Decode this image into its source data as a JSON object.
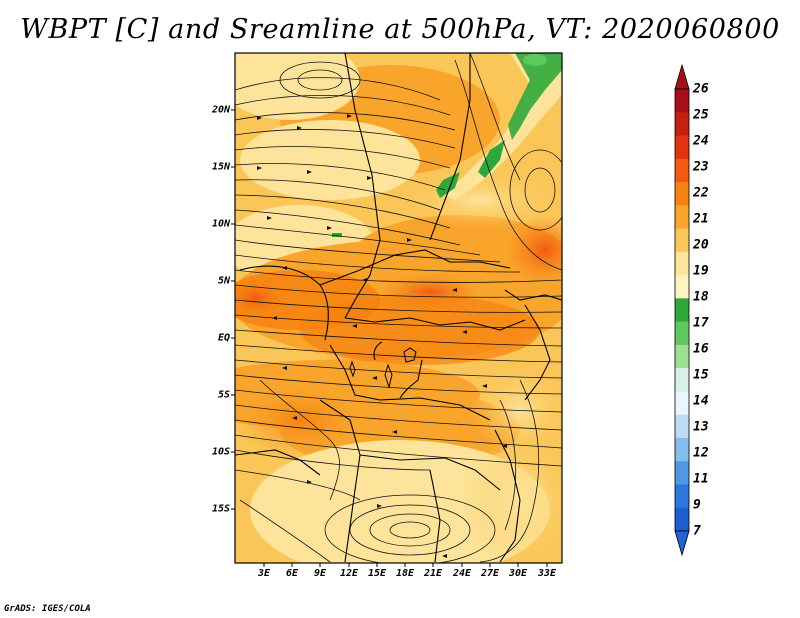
{
  "title": "WBPT [C] and Sreamline at 500hPa, VT: 2020060800",
  "footer": "GrADS: IGES/COLA",
  "map": {
    "variable": "WBPT [C]",
    "level": "500hPa",
    "valid_time": "2020060800",
    "lat_labels": [
      "20N",
      "15N",
      "10N",
      "5N",
      "EQ",
      "5S",
      "10S",
      "15S"
    ],
    "lon_labels": [
      "3E",
      "6E",
      "9E",
      "12E",
      "15E",
      "18E",
      "21E",
      "24E",
      "27E",
      "30E",
      "33E"
    ]
  },
  "colorbar": {
    "labels": [
      "26",
      "25",
      "24",
      "23",
      "22",
      "21",
      "20",
      "19",
      "18",
      "17",
      "16",
      "15",
      "14",
      "13",
      "12",
      "11",
      "9",
      "7"
    ],
    "colors": [
      "#a50f15",
      "#c71f12",
      "#e1330f",
      "#f25a10",
      "#f7820f",
      "#f9a52c",
      "#fbc658",
      "#fde49a",
      "#fff3c2",
      "#2fa83b",
      "#5fc85c",
      "#9ddf95",
      "#d7f1e6",
      "#eaf6fb",
      "#bcdcf5",
      "#84bdee",
      "#4d99e4",
      "#2d78dc",
      "#1a5fd0"
    ],
    "top_arrow_color": "#a50f15",
    "bottom_arrow_color": "#1f63d6"
  }
}
